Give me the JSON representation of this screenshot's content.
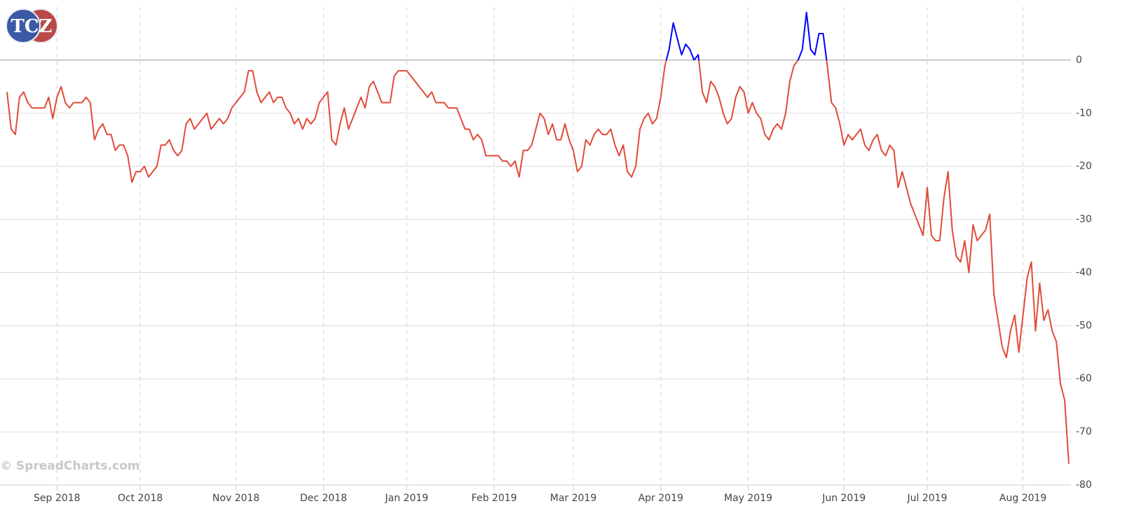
{
  "chart_data": {
    "type": "line",
    "logo": "TCZ",
    "watermark": "© SpreadCharts.com",
    "color": "#e04b3a",
    "above_zero_color": "#0000ff",
    "ylim": [
      -80,
      10
    ],
    "yticks": [
      0,
      -10,
      -20,
      -30,
      -40,
      -50,
      -60,
      -70,
      -80
    ],
    "grid": true,
    "categories": [
      null,
      null,
      null,
      null,
      null,
      null,
      null,
      null,
      null,
      null,
      null,
      null,
      "Sep 2018",
      null,
      null,
      null,
      null,
      null,
      null,
      null,
      null,
      null,
      null,
      null,
      null,
      null,
      null,
      null,
      null,
      null,
      null,
      null,
      "Oct 2018",
      null,
      null,
      null,
      null,
      null,
      null,
      null,
      null,
      null,
      null,
      null,
      null,
      null,
      null,
      null,
      null,
      null,
      null,
      null,
      null,
      null,
      null,
      "Nov 2018",
      null,
      null,
      null,
      null,
      null,
      null,
      null,
      null,
      null,
      null,
      null,
      null,
      null,
      null,
      null,
      null,
      null,
      null,
      null,
      null,
      "Dec 2018",
      null,
      null,
      null,
      null,
      null,
      null,
      null,
      null,
      null,
      null,
      null,
      null,
      null,
      null,
      null,
      null,
      null,
      null,
      null,
      "Jan 2019",
      null,
      null,
      null,
      null,
      null,
      null,
      null,
      null,
      null,
      null,
      null,
      null,
      null,
      null,
      null,
      null,
      null,
      null,
      null,
      null,
      "Feb 2019",
      null,
      null,
      null,
      null,
      null,
      null,
      null,
      null,
      null,
      null,
      null,
      null,
      null,
      null,
      null,
      null,
      null,
      null,
      "Mar 2019",
      null,
      null,
      null,
      null,
      null,
      null,
      null,
      null,
      null,
      null,
      null,
      null,
      null,
      null,
      null,
      null,
      null,
      null,
      null,
      null,
      "Apr 2019",
      null,
      null,
      null,
      null,
      null,
      null,
      null,
      null,
      null,
      null,
      null,
      null,
      null,
      null,
      null,
      null,
      null,
      null,
      null,
      null,
      "May 2019",
      null,
      null,
      null,
      null,
      null,
      null,
      null,
      null,
      null,
      null,
      null,
      null,
      null,
      null,
      null,
      null,
      null,
      null,
      null,
      null,
      null,
      null,
      "Jun 2019",
      null,
      null,
      null,
      null,
      null,
      null,
      null,
      null,
      null,
      null,
      null,
      null,
      null,
      null,
      null,
      null,
      null,
      null,
      null,
      "Jul 2019",
      null,
      null,
      null,
      null,
      null,
      null,
      null,
      null,
      null,
      null,
      null,
      null,
      null,
      null,
      null,
      null,
      null,
      null,
      null,
      null,
      null,
      null,
      "Aug 2019",
      null,
      null,
      null,
      null,
      null,
      null,
      null,
      null,
      null,
      null,
      null
    ],
    "values": [
      -6,
      -13,
      -14,
      -7,
      -6,
      -8,
      -9,
      -9,
      -9,
      -9,
      -7,
      -11,
      -7,
      -5,
      -8,
      -9,
      -8,
      -8,
      -8,
      -7,
      -8,
      -15,
      -13,
      -12,
      -14,
      -14,
      -17,
      -16,
      -16,
      -18,
      -23,
      -21,
      -21,
      -20,
      -22,
      -21,
      -20,
      -16,
      -16,
      -15,
      -17,
      -18,
      -17,
      -12,
      -11,
      -13,
      -12,
      -11,
      -10,
      -13,
      -12,
      -11,
      -12,
      -11,
      -9,
      -8,
      -7,
      -6,
      -2,
      -2,
      -6,
      -8,
      -7,
      -6,
      -8,
      -7,
      -7,
      -9,
      -10,
      -12,
      -11,
      -13,
      -11,
      -12,
      -11,
      -8,
      -7,
      -6,
      -15,
      -16,
      -12,
      -9,
      -13,
      -11,
      -9,
      -7,
      -9,
      -5,
      -4,
      -6,
      -8,
      -8,
      -8,
      -3,
      -2,
      -2,
      -2,
      -3,
      -4,
      -5,
      -6,
      -7,
      -6,
      -8,
      -8,
      -8,
      -9,
      -9,
      -9,
      -11,
      -13,
      -13,
      -15,
      -14,
      -15,
      -18,
      -18,
      -18,
      -18,
      -19,
      -19,
      -20,
      -19,
      -22,
      -17,
      -17,
      -16,
      -13,
      -10,
      -11,
      -14,
      -12,
      -15,
      -15,
      -12,
      -15,
      -17,
      -21,
      -20,
      -15,
      -16,
      -14,
      -13,
      -14,
      -14,
      -13,
      -16,
      -18,
      -16,
      -21,
      -22,
      -20,
      -13,
      -11,
      -10,
      -12,
      -11,
      -7,
      -1,
      2,
      7,
      4,
      1,
      3,
      2,
      0,
      1,
      -6,
      -8,
      -4,
      -5,
      -7,
      -10,
      -12,
      -11,
      -7,
      -5,
      -6,
      -10,
      -8,
      -10,
      -11,
      -14,
      -15,
      -13,
      -12,
      -13,
      -10,
      -4,
      -1,
      0,
      2,
      9,
      2,
      1,
      5,
      5,
      -1,
      -8,
      -9,
      -12,
      -16,
      -14,
      -15,
      -14,
      -13,
      -16,
      -17,
      -15,
      -14,
      -17,
      -18,
      -16,
      -17,
      -24,
      -21,
      -24,
      -27,
      -29,
      -31,
      -33,
      -24,
      -33,
      -34,
      -34,
      -26,
      -21,
      -32,
      -37,
      -38,
      -34,
      -40,
      -31,
      -34,
      -33,
      -32,
      -29,
      -44,
      -49,
      -54,
      -56,
      -51,
      -48,
      -55,
      -48,
      -41,
      -38,
      -51,
      -42,
      -49,
      -47,
      -51,
      -53,
      -61,
      -64,
      -76
    ]
  }
}
